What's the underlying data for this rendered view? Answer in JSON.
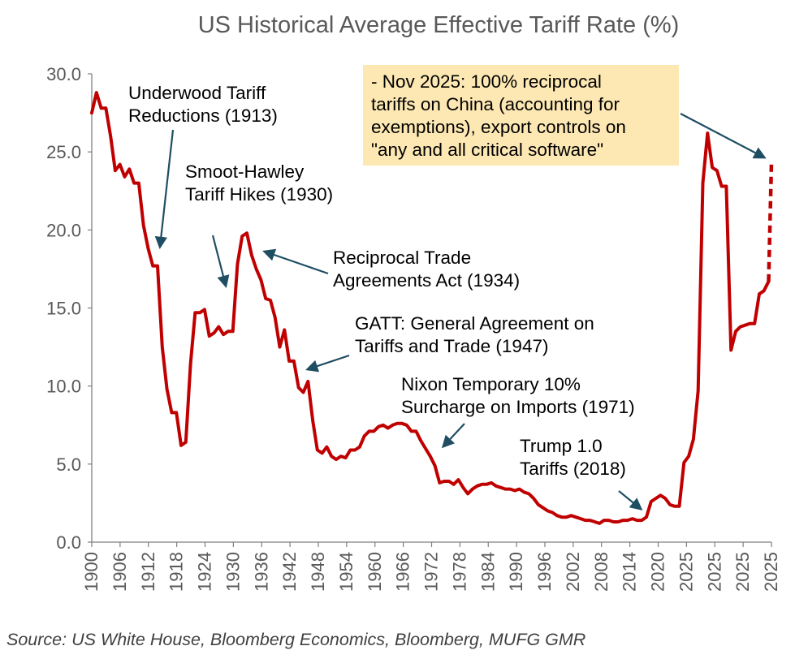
{
  "chart_data": {
    "type": "line",
    "title": "US Historical Average Effective Tariff Rate (%)",
    "xlabel": "",
    "ylabel": "",
    "ylim": [
      0,
      30
    ],
    "grid": false,
    "legend": "none",
    "y_ticks": [
      "0.0",
      "5.0",
      "10.0",
      "15.0",
      "20.0",
      "25.0",
      "30.0"
    ],
    "x_ticks": [
      "1900",
      "1906",
      "1912",
      "1918",
      "1924",
      "1930",
      "1936",
      "1942",
      "1948",
      "1954",
      "1960",
      "1966",
      "1972",
      "1978",
      "1984",
      "1990",
      "1996",
      "2002",
      "2008",
      "2014",
      "2020",
      "2025",
      "2025",
      "2025",
      "2025"
    ],
    "series": [
      {
        "color": "#C00000",
        "points": [
          [
            0,
            27.5
          ],
          [
            1,
            28.8
          ],
          [
            2,
            27.8
          ],
          [
            3,
            27.8
          ],
          [
            4,
            26.0
          ],
          [
            5,
            23.8
          ],
          [
            6,
            24.2
          ],
          [
            7,
            23.4
          ],
          [
            8,
            23.9
          ],
          [
            9,
            23.0
          ],
          [
            10,
            23.0
          ],
          [
            11,
            20.3
          ],
          [
            12,
            18.8
          ],
          [
            13,
            17.7
          ],
          [
            14,
            17.7
          ],
          [
            15,
            12.5
          ],
          [
            16,
            9.8
          ],
          [
            17,
            8.3
          ],
          [
            18,
            8.3
          ],
          [
            19,
            6.2
          ],
          [
            20,
            6.4
          ],
          [
            21,
            11.4
          ],
          [
            22,
            14.7
          ],
          [
            23,
            14.7
          ],
          [
            24,
            14.9
          ],
          [
            25,
            13.2
          ],
          [
            26,
            13.4
          ],
          [
            27,
            13.8
          ],
          [
            28,
            13.3
          ],
          [
            29,
            13.5
          ],
          [
            30,
            13.5
          ],
          [
            31,
            17.8
          ],
          [
            32,
            19.6
          ],
          [
            33,
            19.8
          ],
          [
            34,
            18.4
          ],
          [
            35,
            17.5
          ],
          [
            36,
            16.8
          ],
          [
            37,
            15.6
          ],
          [
            38,
            15.5
          ],
          [
            39,
            14.4
          ],
          [
            40,
            12.5
          ],
          [
            41,
            13.6
          ],
          [
            42,
            11.6
          ],
          [
            43,
            11.6
          ],
          [
            44,
            9.9
          ],
          [
            45,
            9.6
          ],
          [
            46,
            10.3
          ],
          [
            47,
            7.8
          ],
          [
            48,
            5.9
          ],
          [
            49,
            5.7
          ],
          [
            50,
            6.1
          ],
          [
            51,
            5.5
          ],
          [
            52,
            5.3
          ],
          [
            53,
            5.5
          ],
          [
            54,
            5.4
          ],
          [
            55,
            5.9
          ],
          [
            56,
            5.9
          ],
          [
            57,
            6.1
          ],
          [
            58,
            6.8
          ],
          [
            59,
            7.1
          ],
          [
            60,
            7.1
          ],
          [
            61,
            7.4
          ],
          [
            62,
            7.5
          ],
          [
            63,
            7.3
          ],
          [
            64,
            7.5
          ],
          [
            65,
            7.6
          ],
          [
            66,
            7.6
          ],
          [
            67,
            7.5
          ],
          [
            68,
            7.1
          ],
          [
            69,
            7.1
          ],
          [
            70,
            6.5
          ],
          [
            71,
            6.0
          ],
          [
            72,
            5.5
          ],
          [
            73,
            4.9
          ],
          [
            74,
            3.8
          ],
          [
            75,
            3.9
          ],
          [
            76,
            3.9
          ],
          [
            77,
            3.7
          ],
          [
            78,
            4.0
          ],
          [
            79,
            3.5
          ],
          [
            80,
            3.1
          ],
          [
            81,
            3.4
          ],
          [
            82,
            3.6
          ],
          [
            83,
            3.7
          ],
          [
            84,
            3.7
          ],
          [
            85,
            3.8
          ],
          [
            86,
            3.6
          ],
          [
            87,
            3.5
          ],
          [
            88,
            3.4
          ],
          [
            89,
            3.4
          ],
          [
            90,
            3.3
          ],
          [
            91,
            3.4
          ],
          [
            92,
            3.2
          ],
          [
            93,
            3.1
          ],
          [
            94,
            2.8
          ],
          [
            95,
            2.4
          ],
          [
            96,
            2.2
          ],
          [
            97,
            2.0
          ],
          [
            98,
            1.9
          ],
          [
            99,
            1.7
          ],
          [
            100,
            1.6
          ],
          [
            101,
            1.6
          ],
          [
            102,
            1.7
          ],
          [
            103,
            1.6
          ],
          [
            104,
            1.5
          ],
          [
            105,
            1.4
          ],
          [
            106,
            1.4
          ],
          [
            107,
            1.3
          ],
          [
            108,
            1.2
          ],
          [
            109,
            1.4
          ],
          [
            110,
            1.4
          ],
          [
            111,
            1.3
          ],
          [
            112,
            1.3
          ],
          [
            113,
            1.4
          ],
          [
            114,
            1.4
          ],
          [
            115,
            1.5
          ],
          [
            116,
            1.4
          ],
          [
            117,
            1.4
          ],
          [
            118,
            1.6
          ],
          [
            119,
            2.6
          ],
          [
            120,
            2.8
          ],
          [
            121,
            3.0
          ],
          [
            122,
            2.8
          ],
          [
            123,
            2.4
          ],
          [
            124,
            2.3
          ],
          [
            125,
            2.3
          ],
          [
            126,
            5.1
          ],
          [
            127,
            5.5
          ],
          [
            128,
            6.6
          ],
          [
            129,
            9.7
          ],
          [
            130,
            23.0
          ],
          [
            131,
            26.2
          ],
          [
            132,
            24.0
          ],
          [
            133,
            23.8
          ],
          [
            134,
            22.8
          ],
          [
            135,
            22.8
          ],
          [
            136,
            12.3
          ],
          [
            137,
            13.5
          ],
          [
            138,
            13.8
          ],
          [
            139,
            13.9
          ],
          [
            140,
            14.0
          ],
          [
            141,
            14.0
          ],
          [
            142,
            15.9
          ],
          [
            143,
            16.1
          ],
          [
            144,
            16.7
          ]
        ],
        "projection": [
          [
            144,
            16.7
          ],
          [
            144.6,
            24.3
          ]
        ]
      }
    ],
    "annotations": [
      {
        "lines": [
          "Underwood Tariff",
          "Reductions (1913)"
        ]
      },
      {
        "lines": [
          "Smoot-Hawley",
          "Tariff Hikes (1930)"
        ]
      },
      {
        "lines": [
          "Reciprocal Trade",
          "Agreements Act (1934)"
        ]
      },
      {
        "lines": [
          "GATT: General Agreement on",
          "Tariffs and Trade (1947)"
        ]
      },
      {
        "lines": [
          "Nixon Temporary 10%",
          "Surcharge on Imports (1971)"
        ]
      },
      {
        "lines": [
          "Trump 1.0",
          "Tariffs (2018)"
        ]
      }
    ],
    "callout": {
      "background": "#FDE8B3",
      "lines": [
        "- Nov 2025: 100% reciprocal",
        "tariffs on China (accounting for",
        "exemptions), export controls on",
        "\"any and all critical software\""
      ]
    },
    "source": "Source: US White House, Bloomberg Economics, Bloomberg, MUFG GMR"
  }
}
